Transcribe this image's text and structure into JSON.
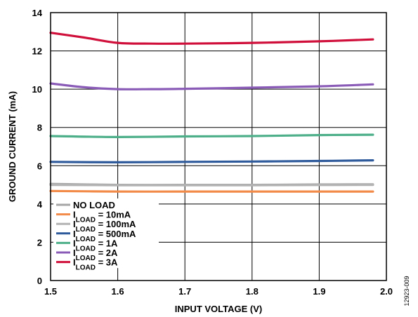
{
  "chart_data": {
    "type": "line",
    "xlabel": "INPUT VOLTAGE (V)",
    "ylabel": "GROUND CURRENT (mA)",
    "xlim": [
      1.5,
      2.0
    ],
    "ylim": [
      0,
      14
    ],
    "xticks": [
      "1.5",
      "1.6",
      "1.7",
      "1.8",
      "1.9",
      "2.0"
    ],
    "yticks": [
      "0",
      "2",
      "4",
      "6",
      "8",
      "10",
      "12",
      "14"
    ],
    "grid": true,
    "legend_position": "bottom-left",
    "figure_id": "12923-009",
    "series": [
      {
        "label_main": "NO LOAD",
        "label_sub": "",
        "label_suffix": "",
        "color": "#a6a6a6",
        "x": [
          1.5,
          1.6,
          1.7,
          1.8,
          1.9,
          1.98
        ],
        "y": [
          5.05,
          5.0,
          5.0,
          5.0,
          5.02,
          5.03
        ]
      },
      {
        "label_main": "I",
        "label_sub": "LOAD",
        "label_suffix": " = 10mA",
        "color": "#f28a49",
        "x": [
          1.5,
          1.6,
          1.7,
          1.8,
          1.9,
          1.98
        ],
        "y": [
          4.68,
          4.65,
          4.65,
          4.65,
          4.65,
          4.65
        ]
      },
      {
        "label_main": "I",
        "label_sub": "LOAD",
        "label_suffix": " = 100mA",
        "color": "#b3b3b3",
        "x": [
          1.5,
          1.6,
          1.7,
          1.8,
          1.9,
          1.98
        ],
        "y": [
          5.0,
          4.98,
          4.98,
          4.98,
          4.99,
          5.0
        ]
      },
      {
        "label_main": "I",
        "label_sub": "LOAD",
        "label_suffix": " = 500mA",
        "color": "#2e5a9c",
        "x": [
          1.5,
          1.6,
          1.7,
          1.8,
          1.9,
          1.98
        ],
        "y": [
          6.2,
          6.18,
          6.2,
          6.22,
          6.25,
          6.28
        ]
      },
      {
        "label_main": "I",
        "label_sub": "LOAD",
        "label_suffix": " = 1A",
        "color": "#4caf8a",
        "x": [
          1.5,
          1.6,
          1.7,
          1.8,
          1.9,
          1.98
        ],
        "y": [
          7.55,
          7.5,
          7.53,
          7.55,
          7.6,
          7.62
        ]
      },
      {
        "label_main": "I",
        "label_sub": "LOAD",
        "label_suffix": " = 2A",
        "color": "#8a5cb8",
        "x": [
          1.5,
          1.55,
          1.6,
          1.65,
          1.7,
          1.8,
          1.9,
          1.98
        ],
        "y": [
          10.3,
          10.1,
          10.0,
          10.0,
          10.02,
          10.08,
          10.15,
          10.25
        ]
      },
      {
        "label_main": "I",
        "label_sub": "LOAD",
        "label_suffix": " = 3A",
        "color": "#d0103a",
        "x": [
          1.5,
          1.55,
          1.6,
          1.65,
          1.7,
          1.8,
          1.9,
          1.98
        ],
        "y": [
          12.95,
          12.7,
          12.42,
          12.38,
          12.38,
          12.42,
          12.5,
          12.6
        ]
      }
    ]
  }
}
